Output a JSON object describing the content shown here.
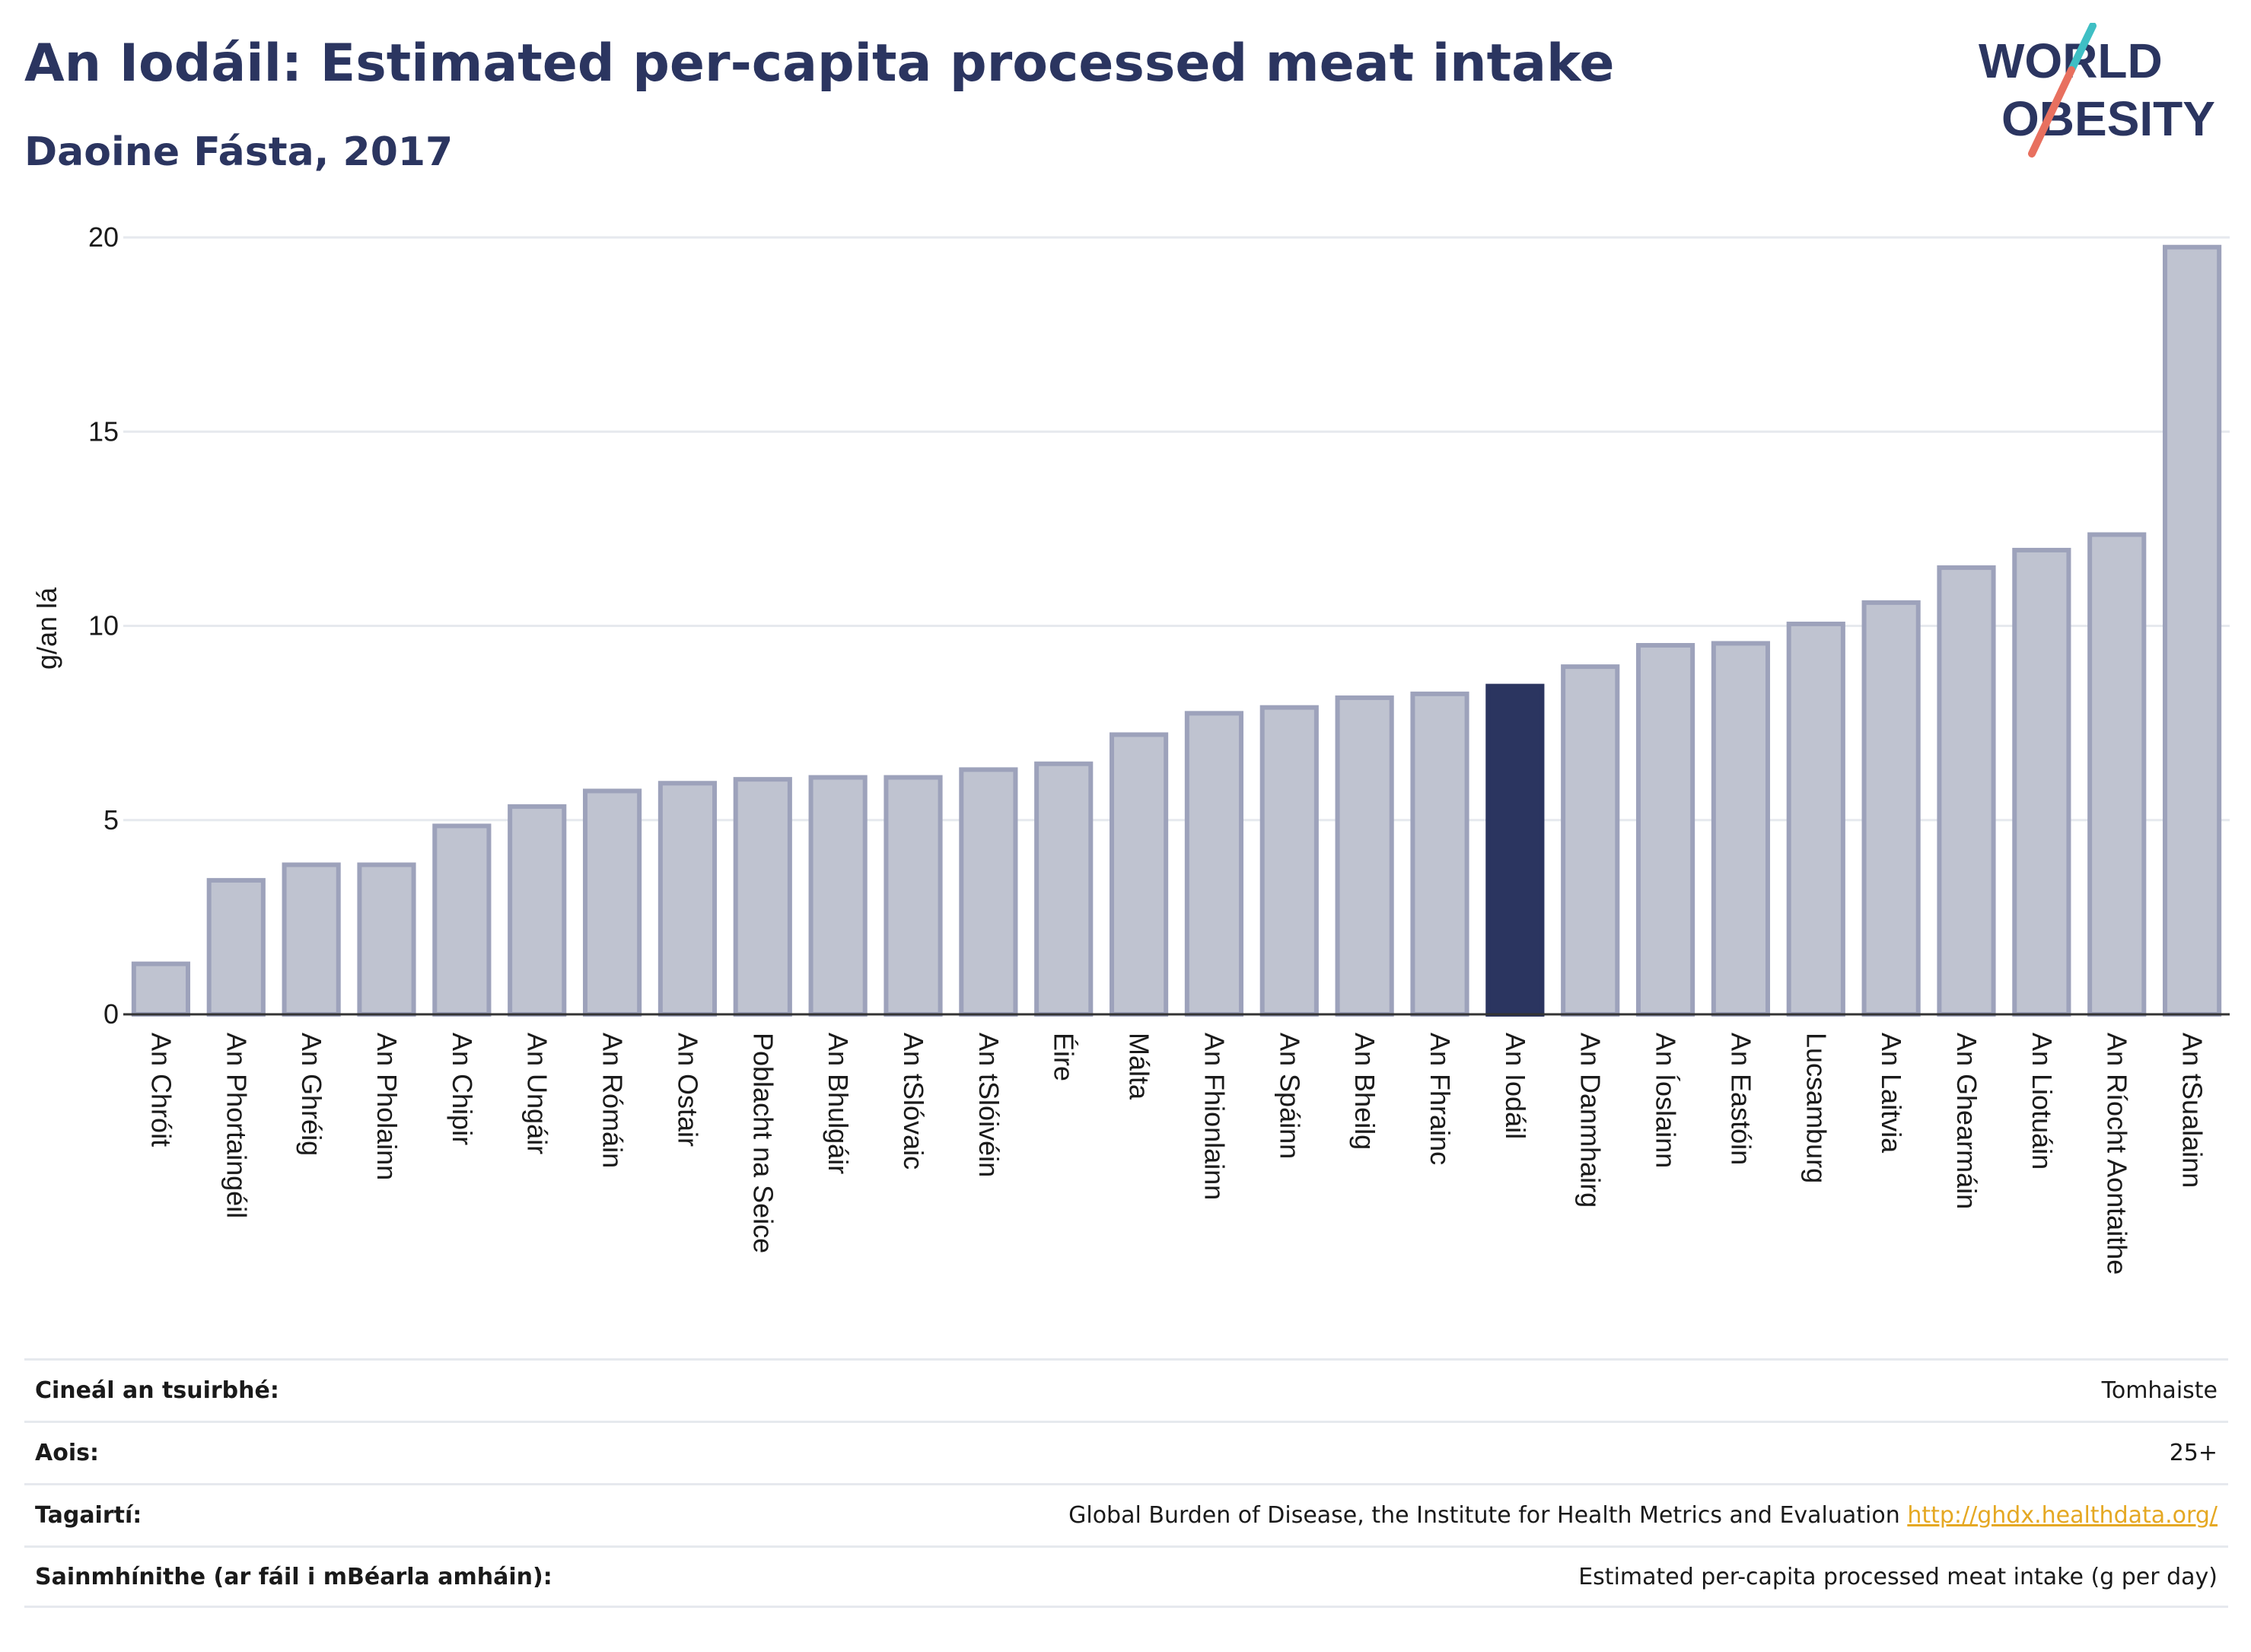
{
  "title": "An Iodáil: Estimated per-capita processed meat intake",
  "subtitle": "Daoine Fásta, 2017",
  "logo": {
    "line1": "WORLD",
    "line2": "OBESITY"
  },
  "colors": {
    "highlight": "#2b3560",
    "bar": "#bfc3d0",
    "bar_stroke": "#9da2bb",
    "text": "#2b3560"
  },
  "chart_data": {
    "type": "bar",
    "ylabel": "g/an lá",
    "ylim": [
      0,
      20
    ],
    "yticks": [
      0,
      5,
      10,
      15,
      20
    ],
    "grid": true,
    "highlight": "An Iodáil",
    "categories": [
      "An Chróit",
      "An Phortaingéil",
      "An Ghréig",
      "An Pholainn",
      "An Chipir",
      "An Ungáir",
      "An Rómáin",
      "An Ostair",
      "Poblacht na Seice",
      "An Bhulgáir",
      "An tSlóvaic",
      "An tSlóivéin",
      "Éire",
      "Málta",
      "An Fhionlainn",
      "An Spáinn",
      "An Bheilg",
      "An Fhrainc",
      "An Iodáil",
      "An Danmhairg",
      "An Íoslainn",
      "An Eastóin",
      "Lucsamburg",
      "An Laitvia",
      "An Ghearmáin",
      "An Liotuáin",
      "An Ríocht Aontaithe",
      "An tSualainn"
    ],
    "values": [
      1.3,
      3.45,
      3.85,
      3.85,
      4.85,
      5.35,
      5.75,
      5.95,
      6.05,
      6.1,
      6.1,
      6.3,
      6.45,
      7.2,
      7.75,
      7.9,
      8.15,
      8.25,
      8.45,
      8.95,
      9.5,
      9.55,
      10.05,
      10.6,
      11.5,
      11.95,
      12.35,
      19.75
    ]
  },
  "meta": [
    {
      "label": "Cineál an tsuirbhé:",
      "value": "Tomhaiste"
    },
    {
      "label": "Aois:",
      "value": "25+"
    },
    {
      "label": "Tagairtí:",
      "value": "Global Burden of Disease, the Institute for Health Metrics and Evaluation",
      "link": "http://ghdx.healthdata.org/"
    },
    {
      "label": "Sainmhínithe (ar fáil i mBéarla amháin):",
      "value": "Estimated per-capita processed meat intake (g per day)"
    }
  ]
}
